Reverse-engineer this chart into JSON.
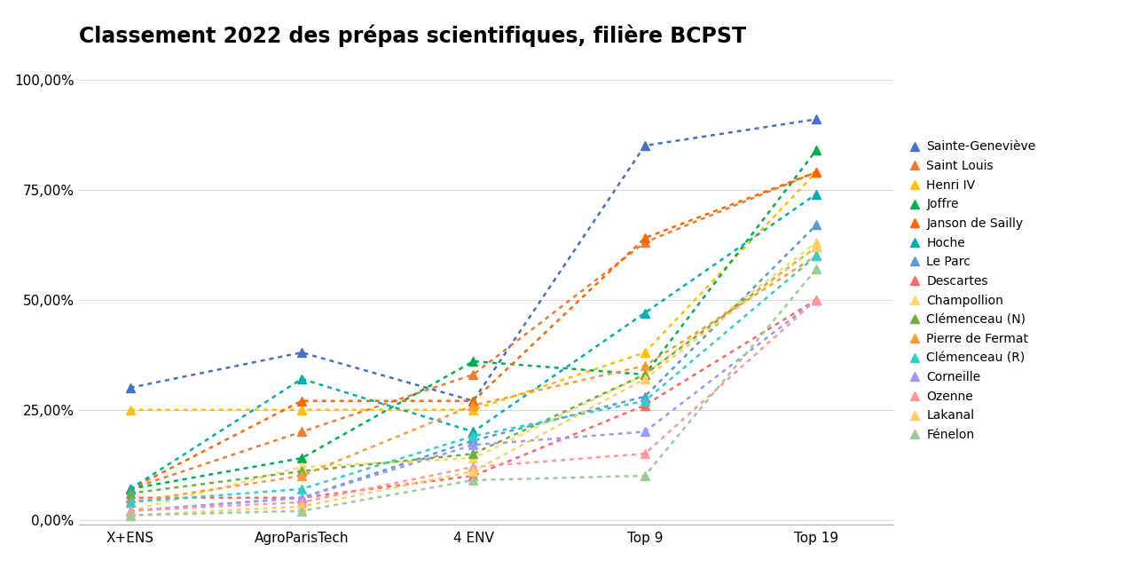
{
  "title": "Classement 2022 des prépas scientifiques, filière BCPST",
  "x_labels": [
    "X+ENS",
    "AgroParisTech",
    "4 ENV",
    "Top 9",
    "Top 19"
  ],
  "schools": [
    {
      "name": "Sainte-Geneviève",
      "color": "#4472C4",
      "values": [
        0.3,
        0.38,
        0.27,
        0.85,
        0.91
      ]
    },
    {
      "name": "Saint Louis",
      "color": "#ED7D31",
      "values": [
        0.07,
        0.2,
        0.33,
        0.63,
        0.79
      ]
    },
    {
      "name": "Henri IV",
      "color": "#FFC000",
      "values": [
        0.25,
        0.25,
        0.25,
        0.38,
        0.79
      ]
    },
    {
      "name": "Joffre",
      "color": "#00B050",
      "values": [
        0.07,
        0.14,
        0.36,
        0.33,
        0.84
      ]
    },
    {
      "name": "Janson de Sailly",
      "color": "#FF6600",
      "values": [
        0.07,
        0.27,
        0.27,
        0.64,
        0.79
      ]
    },
    {
      "name": "Hoche",
      "color": "#00B0B0",
      "values": [
        0.07,
        0.32,
        0.2,
        0.47,
        0.74
      ]
    },
    {
      "name": "Le Parc",
      "color": "#5B9BD5",
      "values": [
        0.02,
        0.05,
        0.18,
        0.28,
        0.67
      ]
    },
    {
      "name": "Descartes",
      "color": "#FF6666",
      "values": [
        0.05,
        0.05,
        0.1,
        0.26,
        0.5
      ]
    },
    {
      "name": "Champollion",
      "color": "#FFD966",
      "values": [
        0.02,
        0.12,
        0.14,
        0.33,
        0.63
      ]
    },
    {
      "name": "Clémenceau (N)",
      "color": "#70AD47",
      "values": [
        0.06,
        0.11,
        0.15,
        0.33,
        0.62
      ]
    },
    {
      "name": "Pierre de Fermat",
      "color": "#FF9933",
      "values": [
        0.04,
        0.1,
        0.26,
        0.35,
        0.6
      ]
    },
    {
      "name": "Clémenceau (R)",
      "color": "#33CCCC",
      "values": [
        0.04,
        0.07,
        0.19,
        0.27,
        0.6
      ]
    },
    {
      "name": "Corneille",
      "color": "#9999FF",
      "values": [
        0.02,
        0.05,
        0.17,
        0.2,
        0.5
      ]
    },
    {
      "name": "Ozenne",
      "color": "#FF9999",
      "values": [
        0.02,
        0.04,
        0.12,
        0.15,
        0.5
      ]
    },
    {
      "name": "Lakanal",
      "color": "#FFCC66",
      "values": [
        0.01,
        0.03,
        0.11,
        0.32,
        0.62
      ]
    },
    {
      "name": "Fénelon",
      "color": "#99CC99",
      "values": [
        0.01,
        0.02,
        0.09,
        0.1,
        0.57
      ]
    }
  ],
  "yticks": [
    0.0,
    0.25,
    0.5,
    0.75,
    1.0
  ],
  "ytick_labels": [
    "0,00%",
    "25,00%",
    "50,00%",
    "75,00%",
    "100,00%"
  ],
  "title_fontsize": 17,
  "axis_fontsize": 11,
  "legend_fontsize": 10,
  "background_color": "#FFFFFF",
  "grid_color": "#D9D9D9",
  "bottom_spine_color": "#AAAAAA"
}
